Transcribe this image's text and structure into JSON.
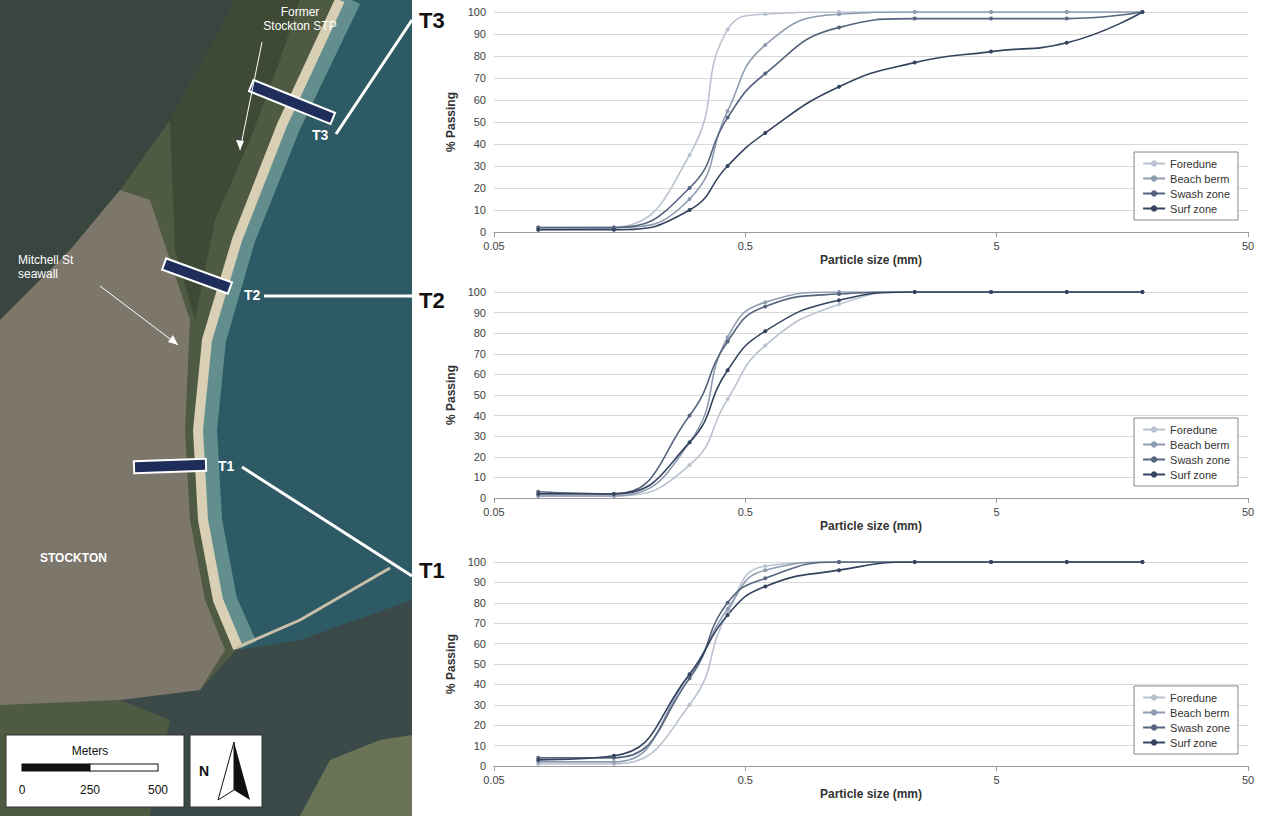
{
  "map": {
    "labels": {
      "stp": "Former Stockton STP",
      "seawall": "Mitchell St seawall",
      "town": "STOCKTON"
    },
    "transects": [
      "T3",
      "T2",
      "T1"
    ],
    "scale_bar": {
      "title": "Meters",
      "ticks": [
        0,
        250,
        500
      ]
    },
    "north": "N"
  },
  "chart_data": [
    {
      "type": "line",
      "title": "T3",
      "x_label": "Particle size (mm)",
      "y_label": "% Passing",
      "log": "x",
      "grid": true,
      "legend": "lower right",
      "marker": "circle",
      "xlim": [
        0.05,
        50
      ],
      "xticks": [
        0.05,
        0.5,
        5,
        50
      ],
      "ylim": [
        0,
        100
      ],
      "yticks": [
        0,
        10,
        20,
        30,
        40,
        50,
        60,
        70,
        80,
        90,
        100
      ],
      "x": [
        0.075,
        0.15,
        0.3,
        0.425,
        0.6,
        1.18,
        2.36,
        4.75,
        9.5,
        19
      ],
      "series": [
        {
          "name": "Foredune",
          "color": "#b9c2cf",
          "values": [
            1,
            2,
            35,
            92,
            99,
            100,
            100,
            100,
            100,
            100
          ]
        },
        {
          "name": "Beach berm",
          "color": "#8e9bb0",
          "values": [
            2,
            2,
            15,
            55,
            85,
            99,
            100,
            100,
            100,
            100
          ]
        },
        {
          "name": "Swash zone",
          "color": "#56657f",
          "values": [
            2,
            2,
            20,
            52,
            72,
            93,
            97,
            97,
            97,
            100
          ]
        },
        {
          "name": "Surf zone",
          "color": "#34445e",
          "values": [
            1,
            1,
            10,
            30,
            45,
            66,
            77,
            82,
            86,
            100
          ]
        }
      ]
    },
    {
      "type": "line",
      "title": "T2",
      "x_label": "Particle size (mm)",
      "y_label": "% Passing",
      "log": "x",
      "grid": true,
      "legend": "lower right",
      "marker": "circle",
      "xlim": [
        0.05,
        50
      ],
      "xticks": [
        0.05,
        0.5,
        5,
        50
      ],
      "ylim": [
        0,
        100
      ],
      "yticks": [
        0,
        10,
        20,
        30,
        40,
        50,
        60,
        70,
        80,
        90,
        100
      ],
      "x": [
        0.075,
        0.15,
        0.3,
        0.425,
        0.6,
        1.18,
        2.36,
        4.75,
        9.5,
        19
      ],
      "series": [
        {
          "name": "Foredune",
          "color": "#b9c2cf",
          "values": [
            1,
            1,
            16,
            48,
            74,
            94,
            100,
            100,
            100,
            100
          ]
        },
        {
          "name": "Beach berm",
          "color": "#8e9bb0",
          "values": [
            1,
            1,
            27,
            78,
            95,
            100,
            100,
            100,
            100,
            100
          ]
        },
        {
          "name": "Swash zone",
          "color": "#56657f",
          "values": [
            3,
            2,
            40,
            76,
            93,
            99,
            100,
            100,
            100,
            100
          ]
        },
        {
          "name": "Surf zone",
          "color": "#34445e",
          "values": [
            2,
            2,
            27,
            62,
            81,
            96,
            100,
            100,
            100,
            100
          ]
        }
      ]
    },
    {
      "type": "line",
      "title": "T1",
      "x_label": "Particle size (mm)",
      "y_label": "% Passing",
      "log": "x",
      "grid": true,
      "legend": "lower right",
      "marker": "circle",
      "xlim": [
        0.05,
        50
      ],
      "xticks": [
        0.05,
        0.5,
        5,
        50
      ],
      "ylim": [
        0,
        100
      ],
      "yticks": [
        0,
        10,
        20,
        30,
        40,
        50,
        60,
        70,
        80,
        90,
        100
      ],
      "x": [
        0.075,
        0.15,
        0.3,
        0.425,
        0.6,
        1.18,
        2.36,
        4.75,
        9.5,
        19
      ],
      "series": [
        {
          "name": "Foredune",
          "color": "#b9c2cf",
          "values": [
            1,
            1,
            30,
            75,
            98,
            100,
            100,
            100,
            100,
            100
          ]
        },
        {
          "name": "Beach berm",
          "color": "#8e9bb0",
          "values": [
            2,
            2,
            45,
            77,
            96,
            100,
            100,
            100,
            100,
            100
          ]
        },
        {
          "name": "Swash zone",
          "color": "#56657f",
          "values": [
            4,
            4,
            43,
            80,
            92,
            100,
            100,
            100,
            100,
            100
          ]
        },
        {
          "name": "Surf zone",
          "color": "#34445e",
          "values": [
            3,
            5,
            45,
            74,
            88,
            96,
            100,
            100,
            100,
            100
          ]
        }
      ]
    }
  ]
}
